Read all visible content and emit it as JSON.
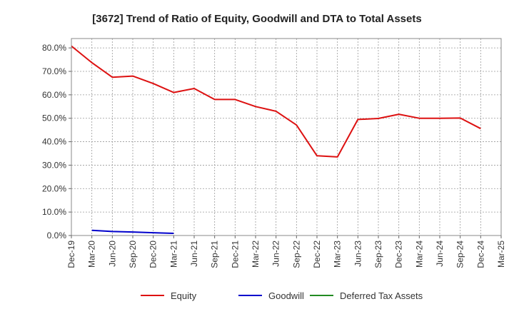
{
  "chart_data": {
    "type": "line",
    "title": "[3672]  Trend of Ratio of Equity, Goodwill and DTA to Total Assets",
    "xlabel": "",
    "ylabel": "",
    "x_ticks": [
      "Dec-19",
      "Mar-20",
      "Jun-20",
      "Sep-20",
      "Dec-20",
      "Mar-21",
      "Jun-21",
      "Sep-21",
      "Dec-21",
      "Mar-22",
      "Jun-22",
      "Sep-22",
      "Dec-22",
      "Mar-23",
      "Jun-23",
      "Sep-23",
      "Dec-23",
      "Mar-24",
      "Jun-24",
      "Sep-24",
      "Dec-24",
      "Mar-25"
    ],
    "y_ticks": [
      "0.0%",
      "10.0%",
      "20.0%",
      "30.0%",
      "40.0%",
      "50.0%",
      "60.0%",
      "70.0%",
      "80.0%"
    ],
    "ylim": [
      0,
      0.84
    ],
    "grid": true,
    "legend_position": "bottom",
    "series": [
      {
        "name": "Equity",
        "color": "#dd1111",
        "x": [
          "Dec-19",
          "Mar-20",
          "Jun-20",
          "Sep-20",
          "Dec-20",
          "Mar-21",
          "Jun-21",
          "Sep-21",
          "Dec-21",
          "Mar-22",
          "Jun-22",
          "Sep-22",
          "Dec-22",
          "Mar-23",
          "Jun-23",
          "Sep-23",
          "Dec-23",
          "Mar-24",
          "Jun-24",
          "Sep-24",
          "Dec-24"
        ],
        "values": [
          0.808,
          0.737,
          0.675,
          0.68,
          0.648,
          0.61,
          0.627,
          0.58,
          0.58,
          0.55,
          0.53,
          0.471,
          0.34,
          0.335,
          0.495,
          0.499,
          0.517,
          0.5,
          0.5,
          0.501,
          0.456
        ]
      },
      {
        "name": "Goodwill",
        "color": "#0000cc",
        "x": [
          "Mar-20",
          "Jun-20",
          "Sep-20",
          "Dec-20",
          "Mar-21"
        ],
        "values": [
          0.022,
          0.017,
          0.015,
          0.012,
          0.009
        ]
      },
      {
        "name": "Deferred Tax Assets",
        "color": "#228b22",
        "x": [],
        "values": []
      }
    ]
  }
}
